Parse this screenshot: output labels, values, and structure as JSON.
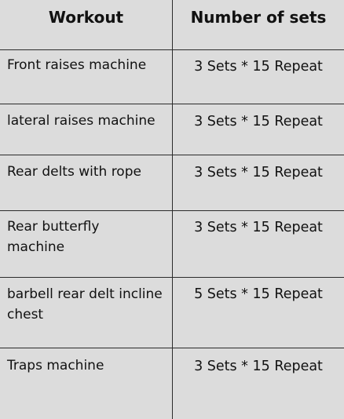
{
  "table": {
    "headers": {
      "workout": "Workout",
      "sets": "Number of sets"
    },
    "rows": [
      {
        "workout": "Front raises machine",
        "sets": "3 Sets * 15 Repeat"
      },
      {
        "workout": "lateral raises machine",
        "sets": "3 Sets * 15 Repeat"
      },
      {
        "workout": "Rear delts with rope",
        "sets": "3 Sets * 15 Repeat"
      },
      {
        "workout": "Rear  butterfly machine",
        "sets": "3 Sets * 15 Repeat"
      },
      {
        "workout": "barbell rear delt incline chest",
        "sets": "5 Sets * 15 Repeat"
      },
      {
        "workout": "Traps machine",
        "sets": "3 Sets * 15 Repeat"
      }
    ]
  }
}
